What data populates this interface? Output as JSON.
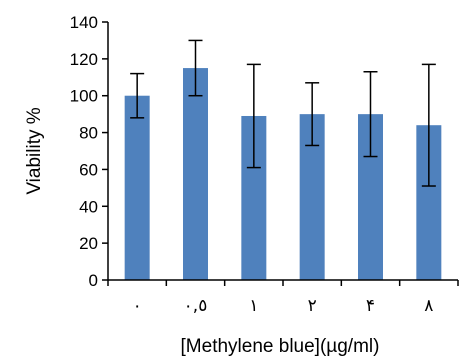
{
  "chart_data": {
    "type": "bar",
    "title": "",
    "xlabel": "[Methylene blue](µg/ml)",
    "ylabel": "Viability %",
    "categories": [
      "٠",
      "٠,٥",
      "١",
      "٢",
      "۴",
      "٨"
    ],
    "values": [
      100,
      115,
      89,
      90,
      90,
      84
    ],
    "error": [
      12,
      15,
      28,
      17,
      23,
      33
    ],
    "ylim": [
      0,
      140
    ],
    "yticks": [
      "0",
      "20",
      "40",
      "60",
      "80",
      "100",
      "120",
      "140"
    ],
    "grid": false,
    "bar_color": "#4f81bd"
  }
}
